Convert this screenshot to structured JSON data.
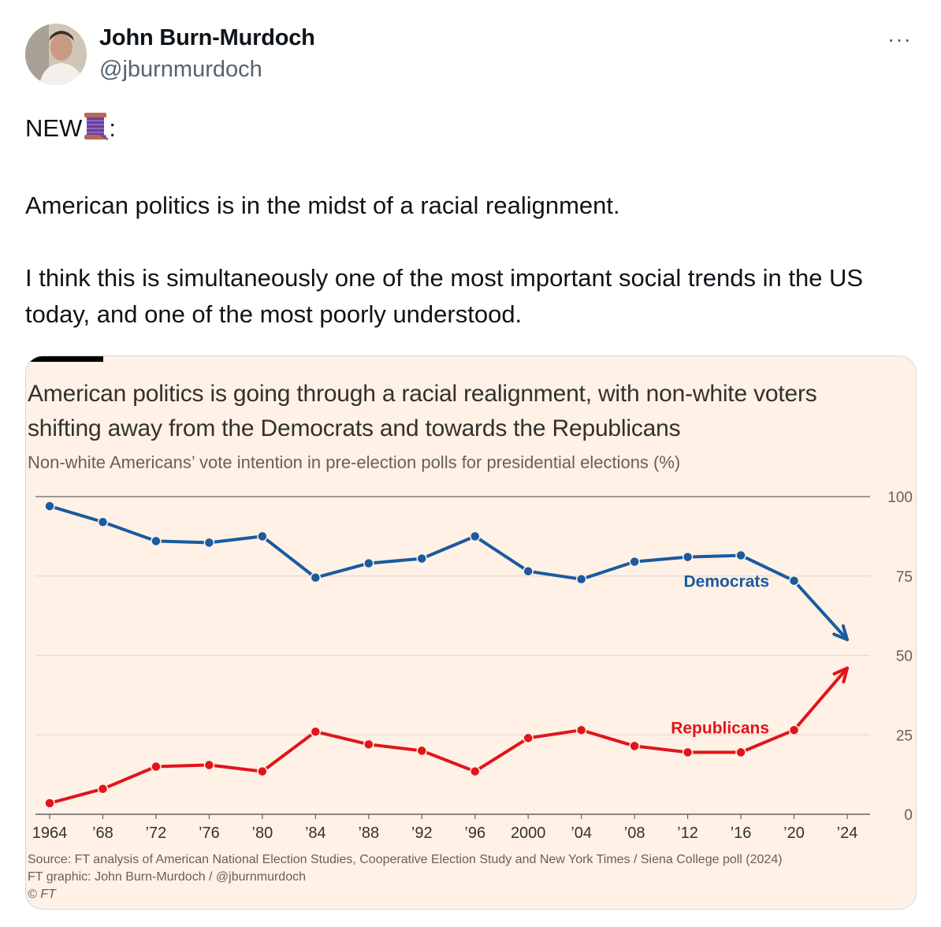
{
  "author": {
    "name": "John Burn-Murdoch",
    "handle": "@jburnmurdoch"
  },
  "more_label": "···",
  "tweet": {
    "line1_prefix": "NEW",
    "line1_suffix": ":",
    "spool_icon": "spool-of-thread-icon",
    "line2": "American politics is in the midst of a racial realignment.",
    "line3": "I think this is simultaneously one of the most important social trends in the US today, and one of the most poorly understood."
  },
  "card": {
    "title": "American politics is going through a racial realignment, with non-white voters shifting away from the Democrats and towards the Republicans",
    "subtitle": "Non-white Americans’ vote intention in pre-election polls for presidential elections (%)",
    "source": "Source: FT analysis of American National Election Studies, Cooperative Election Study and New York Times / Siena College poll (2024)",
    "credit": "FT graphic: John Burn-Murdoch / @jburnmurdoch",
    "copyright": "© FT"
  },
  "chart_data": {
    "type": "line",
    "x": [
      1964,
      1968,
      1972,
      1976,
      1980,
      1984,
      1988,
      1992,
      1996,
      2000,
      2004,
      2008,
      2012,
      2016,
      2020,
      2024
    ],
    "x_tick_labels": [
      "1964",
      "’68",
      "’72",
      "’76",
      "’80",
      "’84",
      "’88",
      "’92",
      "’96",
      "2000",
      "’04",
      "’08",
      "’12",
      "’16",
      "’20",
      "’24"
    ],
    "y_ticks": [
      0,
      25,
      50,
      75,
      100
    ],
    "ylim": [
      0,
      100
    ],
    "y_axis_side": "right",
    "series": [
      {
        "name": "Democrats",
        "color": "#1a5aa0",
        "values": [
          97,
          92,
          86,
          85.5,
          87.5,
          74.5,
          79,
          80.5,
          87.5,
          76.5,
          74,
          79.5,
          81,
          81.5,
          73.5,
          55
        ],
        "last_point_style": "arrow"
      },
      {
        "name": "Republicans",
        "color": "#e0151b",
        "values": [
          3.5,
          8,
          15,
          15.5,
          13.5,
          26,
          22,
          20,
          13.5,
          24,
          26.5,
          21.5,
          19.5,
          19.5,
          26.5,
          46
        ],
        "last_point_style": "arrow"
      }
    ]
  }
}
